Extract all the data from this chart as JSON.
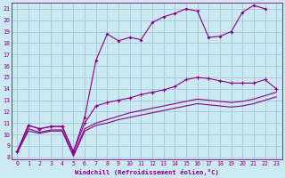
{
  "background_color": "#cce8f0",
  "grid_color": "#a0c8d8",
  "line_color": "#880088",
  "xlabel": "Windchill (Refroidissement éolien,°C)",
  "xlim": [
    -0.5,
    23.5
  ],
  "ylim": [
    7.8,
    21.5
  ],
  "xticks": [
    0,
    1,
    2,
    3,
    4,
    5,
    6,
    7,
    8,
    9,
    10,
    11,
    12,
    13,
    14,
    15,
    16,
    17,
    18,
    19,
    20,
    21,
    22,
    23
  ],
  "yticks": [
    8,
    9,
    10,
    11,
    12,
    13,
    14,
    15,
    16,
    17,
    18,
    19,
    20,
    21
  ],
  "line1_x": [
    0,
    1,
    2,
    3,
    4,
    5,
    6,
    7,
    8,
    9,
    10,
    11,
    12,
    13,
    14,
    15,
    16,
    17,
    18,
    19,
    20,
    21,
    22
  ],
  "line1_y": [
    8.5,
    10.8,
    10.5,
    10.7,
    10.7,
    8.5,
    11.5,
    16.5,
    18.8,
    18.2,
    18.5,
    18.3,
    19.8,
    20.3,
    20.6,
    21.0,
    20.8,
    18.5,
    18.6,
    19.0,
    20.7,
    21.3,
    21.0
  ],
  "line2_x": [
    0,
    1,
    2,
    3,
    4,
    5,
    6,
    7,
    8,
    9,
    10,
    11,
    12,
    13,
    14,
    15,
    16,
    17,
    18,
    19,
    20,
    21,
    22,
    23
  ],
  "line2_y": [
    8.5,
    10.8,
    10.5,
    10.7,
    10.7,
    8.5,
    11.0,
    12.5,
    12.8,
    13.0,
    13.2,
    13.5,
    13.7,
    13.9,
    14.2,
    14.8,
    15.0,
    14.9,
    14.7,
    14.5,
    14.5,
    14.5,
    14.8,
    14.0
  ],
  "line3_x": [
    0,
    1,
    2,
    3,
    4,
    5,
    6,
    7,
    8,
    9,
    10,
    11,
    12,
    13,
    14,
    15,
    16,
    17,
    18,
    19,
    20,
    21,
    22,
    23
  ],
  "line3_y": [
    8.4,
    10.5,
    10.2,
    10.4,
    10.4,
    8.2,
    10.5,
    11.0,
    11.3,
    11.6,
    11.9,
    12.1,
    12.3,
    12.5,
    12.7,
    12.9,
    13.1,
    13.0,
    12.9,
    12.8,
    12.9,
    13.1,
    13.4,
    13.7
  ],
  "line4_x": [
    0,
    1,
    2,
    3,
    4,
    5,
    6,
    7,
    8,
    9,
    10,
    11,
    12,
    13,
    14,
    15,
    16,
    17,
    18,
    19,
    20,
    21,
    22,
    23
  ],
  "line4_y": [
    8.4,
    10.3,
    10.1,
    10.3,
    10.3,
    8.1,
    10.3,
    10.8,
    11.0,
    11.3,
    11.5,
    11.7,
    11.9,
    12.1,
    12.3,
    12.5,
    12.7,
    12.6,
    12.5,
    12.4,
    12.5,
    12.7,
    13.0,
    13.3
  ]
}
